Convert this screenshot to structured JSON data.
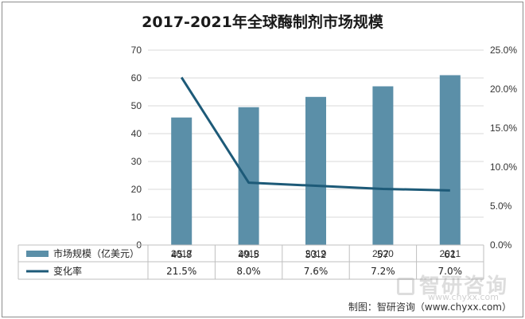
{
  "chart_data": {
    "type": "bar",
    "title": "2017-2021年全球酶制剂市场规模",
    "categories": [
      "2017",
      "2018",
      "2019",
      "2020",
      "2021"
    ],
    "series": [
      {
        "name": "市场规模（亿美元）",
        "type": "bar",
        "axis": "left",
        "color": "#5b8fa8",
        "values": [
          45.8,
          49.5,
          53.2,
          57,
          61
        ],
        "labels": [
          "45.8",
          "49.5",
          "53.2",
          "57",
          "61"
        ]
      },
      {
        "name": "变化率",
        "type": "line",
        "axis": "right",
        "color": "#1d5a78",
        "values": [
          21.5,
          8.0,
          7.6,
          7.2,
          7.0
        ],
        "labels": [
          "21.5%",
          "8.0%",
          "7.6%",
          "7.2%",
          "7.0%"
        ]
      }
    ],
    "y_left": {
      "ylim": [
        0,
        70
      ],
      "ticks": [
        "0",
        "10",
        "20",
        "30",
        "40",
        "50",
        "60",
        "70"
      ]
    },
    "y_right": {
      "ylim": [
        0,
        25
      ],
      "ticks": [
        "0.0%",
        "5.0%",
        "10.0%",
        "15.0%",
        "20.0%",
        "25.0%"
      ]
    },
    "grid": true,
    "legend": "data-table-bottom"
  },
  "source": "制图：智研咨询（www.chyxx.com）",
  "watermark": {
    "text": "智研咨询",
    "url": "www.chyxx.com"
  }
}
